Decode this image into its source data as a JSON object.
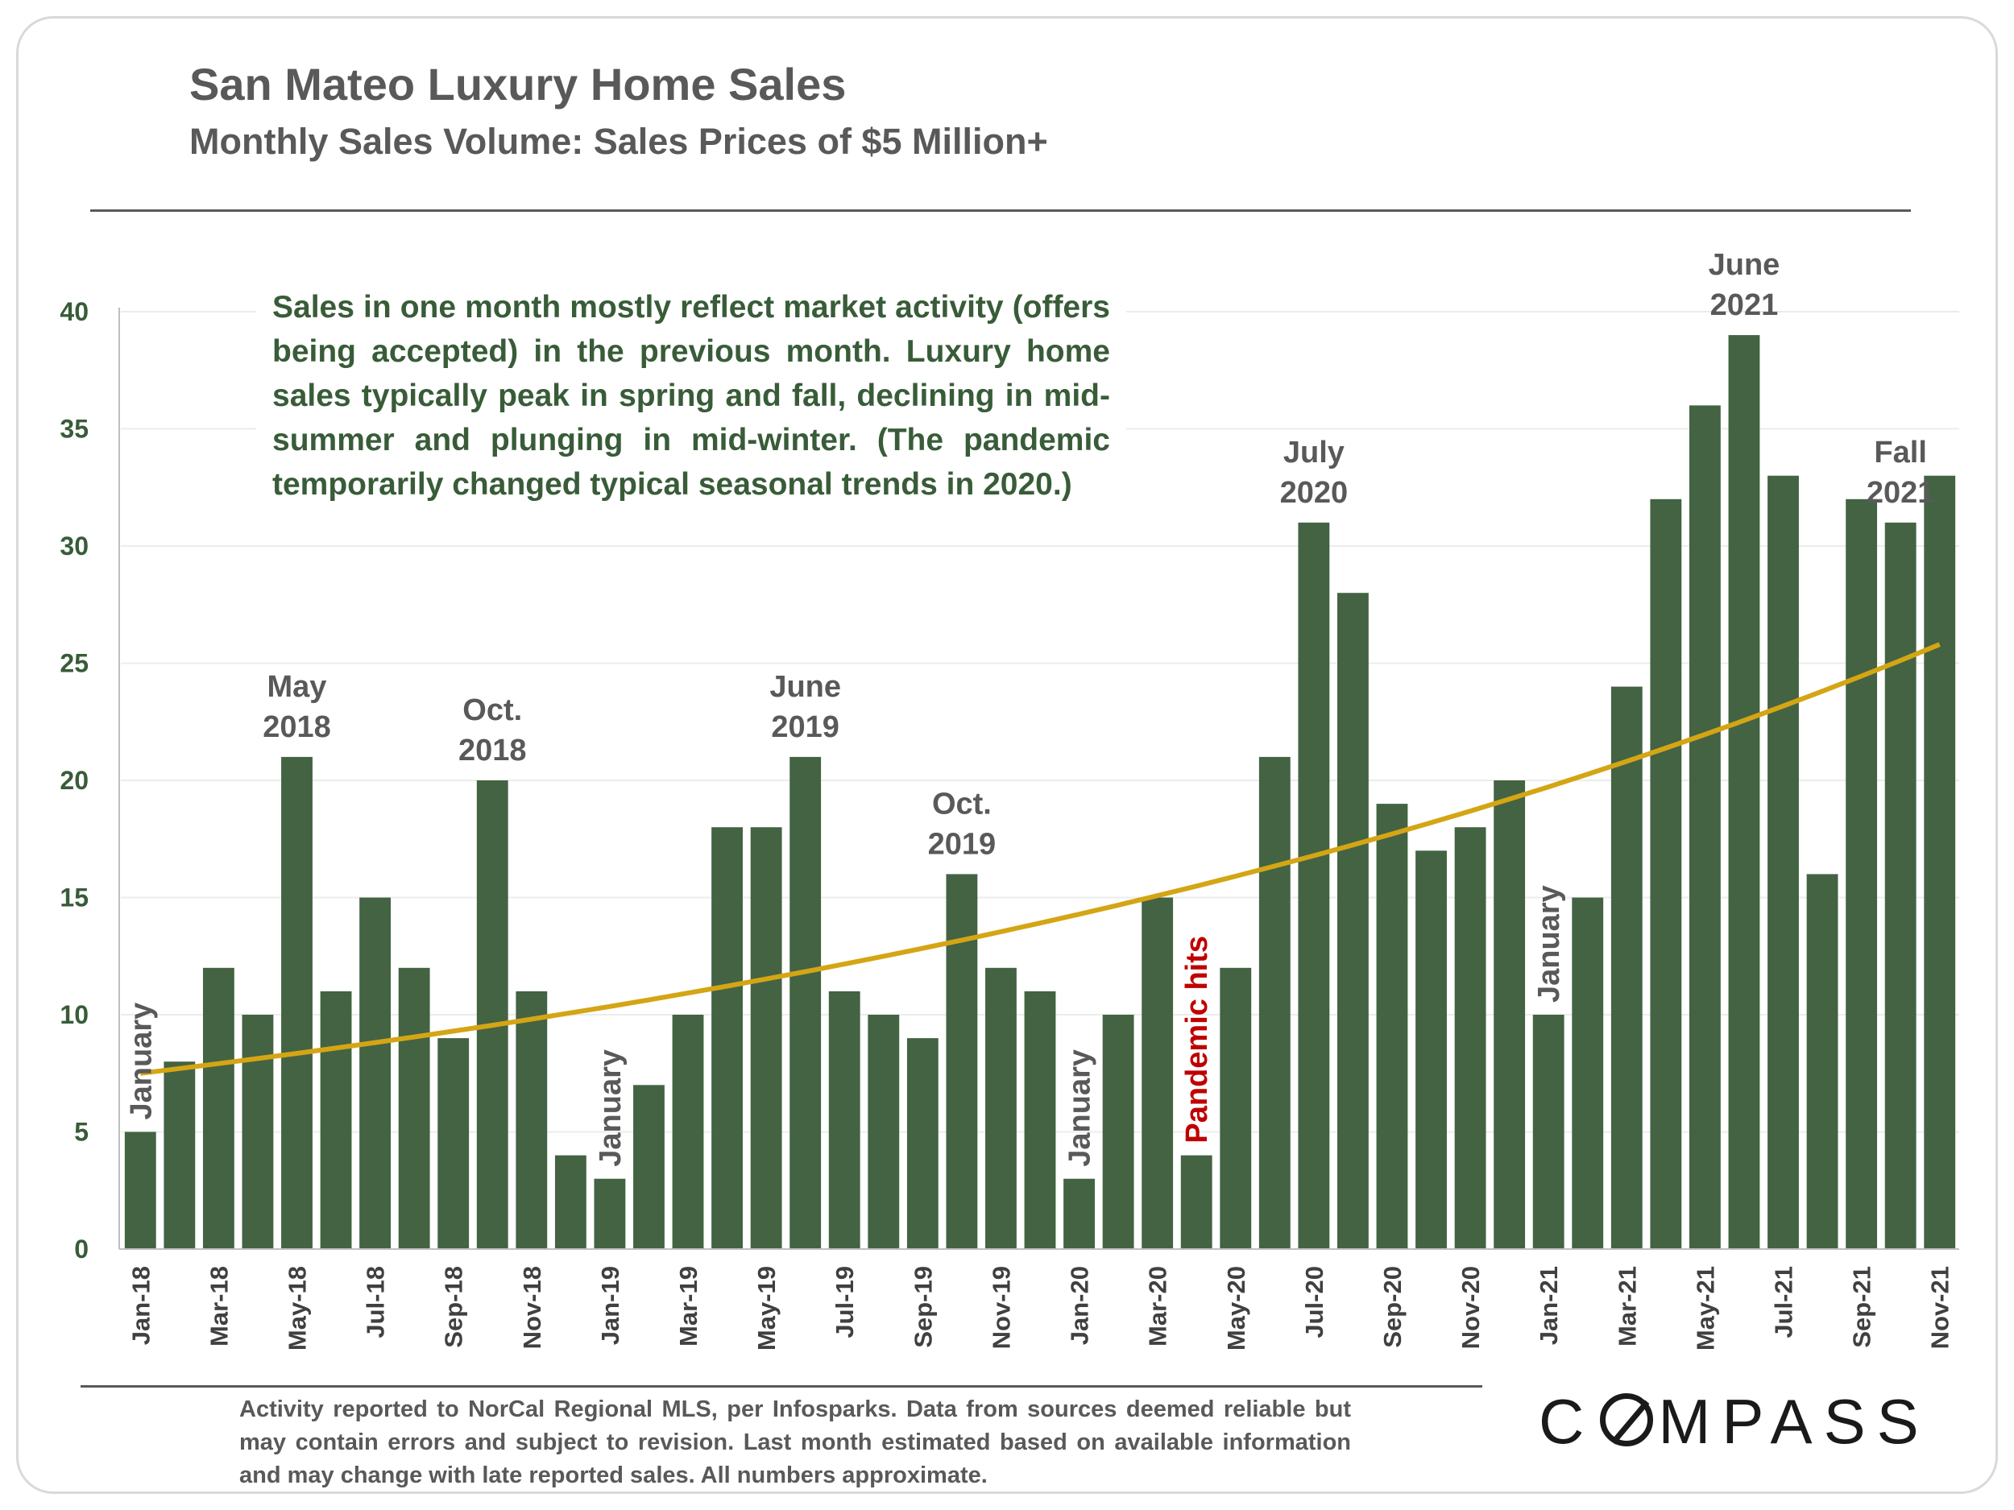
{
  "header": {
    "title": "San Mateo Luxury Home Sales",
    "subtitle": "Monthly Sales Volume: Sales Prices of $5 Million+"
  },
  "callout": {
    "text": "Sales in one month mostly reflect market activity (offers being accepted) in the previous month. Luxury home sales typically peak in spring and fall, declining in mid-summer and plunging in mid-winter. (The pandemic temporarily changed typical seasonal trends in 2020.)"
  },
  "footnote": {
    "text": "Activity reported to NorCal Regional MLS, per Infosparks. Data from sources deemed reliable but may contain errors and subject to revision. Last month estimated based on available information and may change with late reported sales. All numbers approximate."
  },
  "logo": {
    "text": "COMPASS"
  },
  "colors": {
    "bar": "#436343",
    "trend": "#d4a514",
    "axis": "#385c38",
    "annotation": "#595959",
    "pandemic": "#c00000"
  },
  "chart_data": {
    "type": "bar",
    "categories": [
      "Jan-18",
      "Feb-18",
      "Mar-18",
      "Apr-18",
      "May-18",
      "Jun-18",
      "Jul-18",
      "Aug-18",
      "Sep-18",
      "Oct-18",
      "Nov-18",
      "Dec-18",
      "Jan-19",
      "Feb-19",
      "Mar-19",
      "Apr-19",
      "May-19",
      "Jun-19",
      "Jul-19",
      "Aug-19",
      "Sep-19",
      "Oct-19",
      "Nov-19",
      "Dec-19",
      "Jan-20",
      "Feb-20",
      "Mar-20",
      "Apr-20",
      "May-20",
      "Jun-20",
      "Jul-20",
      "Aug-20",
      "Sep-20",
      "Oct-20",
      "Nov-20",
      "Dec-20",
      "Jan-21",
      "Feb-21",
      "Mar-21",
      "Apr-21",
      "May-21",
      "Jun-21",
      "Jul-21",
      "Aug-21",
      "Sep-21",
      "Oct-21",
      "Nov-21"
    ],
    "x_tick_labels": [
      "Jan-18",
      "Mar-18",
      "May-18",
      "Jul-18",
      "Sep-18",
      "Nov-18",
      "Jan-19",
      "Mar-19",
      "May-19",
      "Jul-19",
      "Sep-19",
      "Nov-19",
      "Jan-20",
      "Mar-20",
      "May-20",
      "Jul-20",
      "Sep-20",
      "Nov-20",
      "Jan-21",
      "Mar-21",
      "May-21",
      "Jul-21",
      "Sep-21",
      "Nov-21"
    ],
    "values": [
      5,
      8,
      12,
      10,
      21,
      11,
      15,
      12,
      9,
      20,
      11,
      4,
      3,
      7,
      10,
      18,
      18,
      21,
      11,
      10,
      9,
      16,
      12,
      11,
      3,
      10,
      15,
      4,
      12,
      21,
      31,
      28,
      19,
      17,
      18,
      20,
      10,
      15,
      24,
      32,
      36,
      39,
      33,
      16,
      32,
      31,
      33
    ],
    "trendline": {
      "type": "exponential",
      "start": 7.5,
      "end": 25.8
    },
    "ylim": [
      0,
      40
    ],
    "yticks": [
      0,
      5,
      10,
      15,
      20,
      25,
      30,
      35,
      40
    ],
    "grid": true,
    "annotations": [
      {
        "index": 0,
        "lines": [
          "January"
        ],
        "orientation": "vertical"
      },
      {
        "index": 4,
        "lines": [
          "May",
          "2018"
        ],
        "orientation": "horizontal"
      },
      {
        "index": 9,
        "lines": [
          "Oct.",
          "2018"
        ],
        "orientation": "horizontal"
      },
      {
        "index": 12,
        "lines": [
          "January"
        ],
        "orientation": "vertical"
      },
      {
        "index": 17,
        "lines": [
          "June",
          "2019"
        ],
        "orientation": "horizontal"
      },
      {
        "index": 21,
        "lines": [
          "Oct.",
          "2019"
        ],
        "orientation": "horizontal"
      },
      {
        "index": 24,
        "lines": [
          "January"
        ],
        "orientation": "vertical"
      },
      {
        "index": 27,
        "lines": [
          "Pandemic hits"
        ],
        "orientation": "vertical",
        "highlight": true
      },
      {
        "index": 30,
        "lines": [
          "July",
          "2020"
        ],
        "orientation": "horizontal"
      },
      {
        "index": 36,
        "lines": [
          "January"
        ],
        "orientation": "vertical"
      },
      {
        "index": 41,
        "lines": [
          "June",
          "2021"
        ],
        "orientation": "horizontal"
      },
      {
        "index": 45,
        "lines": [
          "Fall",
          "2021"
        ],
        "orientation": "horizontal"
      }
    ]
  }
}
